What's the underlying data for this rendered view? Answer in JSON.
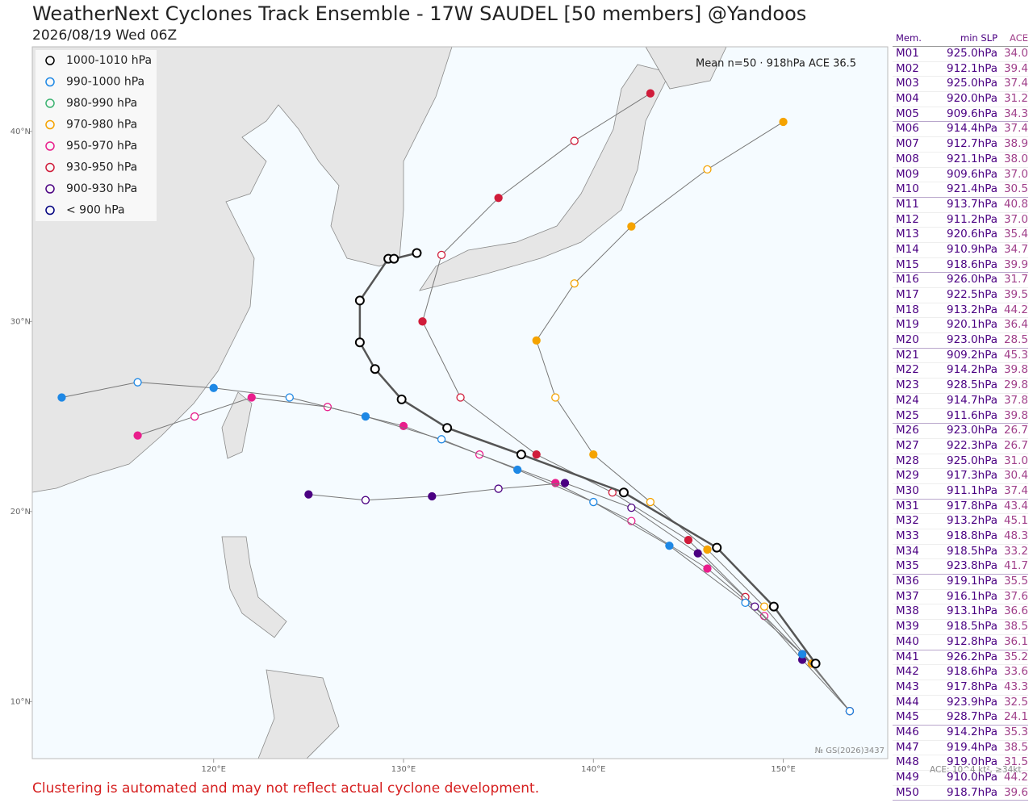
{
  "chart_data": {
    "type": "track_map",
    "title": "WeatherNext Cyclones Track Ensemble - 17W SAUDEL [50 members] @Yandoos",
    "subtitle": "2026/08/19 Wed 06Z",
    "xlim": [
      110.45,
      155.5
    ],
    "ylim": [
      7.0,
      44.45
    ],
    "xticks": [
      {
        "value": 120,
        "label": "120°E"
      },
      {
        "value": 130,
        "label": "130°E"
      },
      {
        "value": 140,
        "label": "140°E"
      },
      {
        "value": 150,
        "label": "150°E"
      }
    ],
    "yticks": [
      {
        "value": 10,
        "label": "10°N"
      },
      {
        "value": 20,
        "label": "20°N"
      },
      {
        "value": 30,
        "label": "30°N"
      },
      {
        "value": 40,
        "label": "40°N"
      }
    ],
    "legend": [
      {
        "name": "1000-1010 hPa",
        "color": "#000000"
      },
      {
        "name": "990-1000 hPa",
        "color": "#1e88e5"
      },
      {
        "name": "980-990 hPa",
        "color": "#3cb371"
      },
      {
        "name": "970-980 hPa",
        "color": "#f5a300"
      },
      {
        "name": "950-970 hPa",
        "color": "#e91e8c"
      },
      {
        "name": "930-950 hPa",
        "color": "#d01c3a"
      },
      {
        "name": "900-930 hPa",
        "color": "#4b0082"
      },
      {
        "name": "< 900 hPa",
        "color": "#000080"
      }
    ],
    "tracks": [
      {
        "color": "#e91e8c",
        "lon": [
          153.5,
          151.5,
          149,
          146,
          142,
          138,
          134,
          130,
          126,
          122,
          119,
          116
        ],
        "lat": [
          9.5,
          12,
          14.5,
          17,
          19.5,
          21.5,
          23,
          24.5,
          25.5,
          26,
          25,
          24
        ]
      },
      {
        "color": "#d01c3a",
        "lon": [
          153.5,
          151,
          148,
          145,
          141,
          137,
          133,
          131,
          132,
          135,
          139,
          143
        ],
        "lat": [
          9.5,
          12.5,
          15.5,
          18.5,
          21,
          23,
          26,
          30,
          33.5,
          36.5,
          39.5,
          42
        ]
      },
      {
        "color": "#f5a300",
        "lon": [
          153.5,
          151.5,
          149,
          146,
          143,
          140,
          138,
          137,
          139,
          142,
          146,
          150
        ],
        "lat": [
          9.5,
          12,
          15,
          18,
          20.5,
          23,
          26,
          29,
          32,
          35,
          38,
          40.5
        ]
      },
      {
        "color": "#4b0082",
        "lon": [
          153.5,
          151,
          148.5,
          145.5,
          142,
          138.5,
          135,
          131.5,
          128,
          125
        ],
        "lat": [
          9.5,
          12.2,
          15,
          17.8,
          20.2,
          21.5,
          21.2,
          20.8,
          20.6,
          20.9
        ]
      },
      {
        "color": "#1e88e5",
        "lon": [
          153.5,
          151,
          148,
          144,
          140,
          136,
          132,
          128,
          124,
          120,
          116,
          112
        ],
        "lat": [
          9.5,
          12.5,
          15.2,
          18.2,
          20.5,
          22.2,
          23.8,
          25,
          26,
          26.5,
          26.8,
          26
        ]
      }
    ],
    "mean_track": {
      "lon": [
        151.7,
        149.5,
        146.5,
        141.6,
        136.2,
        132.3,
        129.9,
        128.5,
        127.7,
        127.7,
        129.2,
        129.5,
        130.7
      ],
      "lat": [
        12.0,
        15.0,
        18.1,
        21.0,
        23.0,
        24.4,
        25.9,
        27.5,
        28.9,
        31.1,
        33.3,
        33.3,
        33.6
      ]
    },
    "mean_label": "Mean n=50 · 918hPa  ACE 36.5",
    "credit": "№ GS(2026)3437",
    "note": "Clustering is automated and may not reflect actual cyclone development."
  },
  "table": {
    "columns": [
      "Mem.",
      "min SLP",
      "ACE"
    ],
    "rows": [
      [
        "M01",
        "925.0hPa",
        "34.0"
      ],
      [
        "M02",
        "912.1hPa",
        "39.4"
      ],
      [
        "M03",
        "925.0hPa",
        "37.4"
      ],
      [
        "M04",
        "920.0hPa",
        "31.2"
      ],
      [
        "M05",
        "909.6hPa",
        "34.3"
      ],
      [
        "M06",
        "914.4hPa",
        "37.4"
      ],
      [
        "M07",
        "912.7hPa",
        "38.9"
      ],
      [
        "M08",
        "921.1hPa",
        "38.0"
      ],
      [
        "M09",
        "909.6hPa",
        "37.0"
      ],
      [
        "M10",
        "921.4hPa",
        "30.5"
      ],
      [
        "M11",
        "913.7hPa",
        "40.8"
      ],
      [
        "M12",
        "911.2hPa",
        "37.0"
      ],
      [
        "M13",
        "920.6hPa",
        "35.4"
      ],
      [
        "M14",
        "910.9hPa",
        "34.7"
      ],
      [
        "M15",
        "918.6hPa",
        "39.9"
      ],
      [
        "M16",
        "926.0hPa",
        "31.7"
      ],
      [
        "M17",
        "922.5hPa",
        "39.5"
      ],
      [
        "M18",
        "913.2hPa",
        "44.2"
      ],
      [
        "M19",
        "920.1hPa",
        "36.4"
      ],
      [
        "M20",
        "923.0hPa",
        "28.5"
      ],
      [
        "M21",
        "909.2hPa",
        "45.3"
      ],
      [
        "M22",
        "914.2hPa",
        "39.8"
      ],
      [
        "M23",
        "928.5hPa",
        "29.8"
      ],
      [
        "M24",
        "914.7hPa",
        "37.8"
      ],
      [
        "M25",
        "911.6hPa",
        "39.8"
      ],
      [
        "M26",
        "923.0hPa",
        "26.7"
      ],
      [
        "M27",
        "922.3hPa",
        "26.7"
      ],
      [
        "M28",
        "925.0hPa",
        "31.0"
      ],
      [
        "M29",
        "917.3hPa",
        "30.4"
      ],
      [
        "M30",
        "911.1hPa",
        "37.4"
      ],
      [
        "M31",
        "917.8hPa",
        "43.4"
      ],
      [
        "M32",
        "913.2hPa",
        "45.1"
      ],
      [
        "M33",
        "918.8hPa",
        "48.3"
      ],
      [
        "M34",
        "918.5hPa",
        "33.2"
      ],
      [
        "M35",
        "923.8hPa",
        "41.7"
      ],
      [
        "M36",
        "919.1hPa",
        "35.5"
      ],
      [
        "M37",
        "916.1hPa",
        "37.6"
      ],
      [
        "M38",
        "913.1hPa",
        "36.6"
      ],
      [
        "M39",
        "918.5hPa",
        "38.5"
      ],
      [
        "M40",
        "912.8hPa",
        "36.1"
      ],
      [
        "M41",
        "926.2hPa",
        "35.2"
      ],
      [
        "M42",
        "918.6hPa",
        "33.6"
      ],
      [
        "M43",
        "917.8hPa",
        "43.3"
      ],
      [
        "M44",
        "923.9hPa",
        "32.5"
      ],
      [
        "M45",
        "928.7hPa",
        "24.1"
      ],
      [
        "M46",
        "914.2hPa",
        "35.3"
      ],
      [
        "M47",
        "919.4hPa",
        "38.5"
      ],
      [
        "M48",
        "919.0hPa",
        "31.5"
      ],
      [
        "M49",
        "910.0hPa",
        "44.2"
      ],
      [
        "M50",
        "918.7hPa",
        "39.6"
      ]
    ],
    "footnote": "ACE: 10^4 kt², ≥34kt"
  }
}
